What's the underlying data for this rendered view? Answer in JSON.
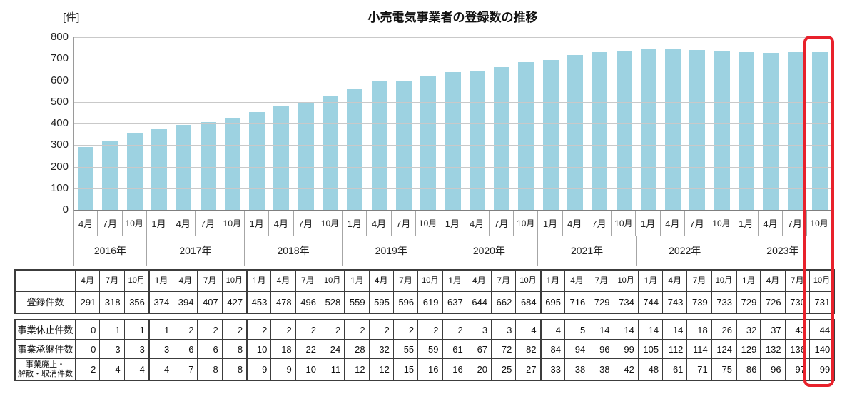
{
  "chart_data": {
    "type": "bar",
    "title": "小売電気事業者の登録数の推移",
    "ylabel": "[件]",
    "xlabel": "",
    "ylim": [
      0,
      800
    ],
    "ytick_interval": 100,
    "grid": true,
    "legend_position": "none",
    "bar_color": "#9dd2e1",
    "highlight_color": "#e8212b",
    "highlighted_category": "2023年 10月",
    "years": [
      {
        "label": "2016年",
        "months": [
          "4月",
          "7月",
          "10月"
        ]
      },
      {
        "label": "2017年",
        "months": [
          "1月",
          "4月",
          "7月",
          "10月"
        ]
      },
      {
        "label": "2018年",
        "months": [
          "1月",
          "4月",
          "7月",
          "10月"
        ]
      },
      {
        "label": "2019年",
        "months": [
          "1月",
          "4月",
          "7月",
          "10月"
        ]
      },
      {
        "label": "2020年",
        "months": [
          "1月",
          "4月",
          "7月",
          "10月"
        ]
      },
      {
        "label": "2021年",
        "months": [
          "1月",
          "4月",
          "7月",
          "10月"
        ]
      },
      {
        "label": "2022年",
        "months": [
          "1月",
          "4月",
          "7月",
          "10月"
        ]
      },
      {
        "label": "2023年",
        "months": [
          "1月",
          "4月",
          "7月",
          "10月"
        ]
      }
    ],
    "categories": [
      "4月",
      "7月",
      "10月",
      "1月",
      "4月",
      "7月",
      "10月",
      "1月",
      "4月",
      "7月",
      "10月",
      "1月",
      "4月",
      "7月",
      "10月",
      "1月",
      "4月",
      "7月",
      "10月",
      "1月",
      "4月",
      "7月",
      "10月",
      "1月",
      "4月",
      "7月",
      "10月",
      "1月",
      "4月",
      "7月",
      "10月"
    ],
    "values": [
      291,
      318,
      356,
      374,
      394,
      407,
      427,
      453,
      478,
      496,
      528,
      559,
      595,
      596,
      619,
      637,
      644,
      662,
      684,
      695,
      716,
      729,
      734,
      744,
      743,
      739,
      733,
      729,
      726,
      730,
      731
    ]
  },
  "table": {
    "corner_label": "",
    "col_months": [
      "4月",
      "7月",
      "10月",
      "1月",
      "4月",
      "7月",
      "10月",
      "1月",
      "4月",
      "7月",
      "10月",
      "1月",
      "4月",
      "7月",
      "10月",
      "1月",
      "4月",
      "7月",
      "10月",
      "1月",
      "4月",
      "7月",
      "10月",
      "1月",
      "4月",
      "7月",
      "10月",
      "1月",
      "4月",
      "7月",
      "10月"
    ],
    "year_group_sizes": [
      3,
      4,
      4,
      4,
      4,
      4,
      4,
      4
    ],
    "upper_rows": [
      {
        "label": "登録件数",
        "values": [
          291,
          318,
          356,
          374,
          394,
          407,
          427,
          453,
          478,
          496,
          528,
          559,
          595,
          596,
          619,
          637,
          644,
          662,
          684,
          695,
          716,
          729,
          734,
          744,
          743,
          739,
          733,
          729,
          726,
          730,
          731
        ]
      }
    ],
    "lower_rows": [
      {
        "label": "事業休止件数",
        "values": [
          0,
          1,
          1,
          1,
          2,
          2,
          2,
          2,
          2,
          2,
          2,
          2,
          2,
          2,
          2,
          2,
          3,
          3,
          4,
          4,
          5,
          14,
          14,
          14,
          14,
          18,
          26,
          32,
          37,
          43,
          44
        ]
      },
      {
        "label": "事業承継件数",
        "values": [
          0,
          3,
          3,
          3,
          6,
          6,
          8,
          10,
          18,
          22,
          24,
          28,
          32,
          55,
          59,
          61,
          67,
          72,
          82,
          84,
          94,
          96,
          99,
          105,
          112,
          114,
          124,
          129,
          132,
          136,
          140
        ]
      },
      {
        "label": "事業廃止・\n解散・取消件数",
        "values": [
          2,
          4,
          4,
          4,
          7,
          8,
          8,
          9,
          9,
          10,
          11,
          12,
          12,
          15,
          16,
          16,
          20,
          25,
          27,
          33,
          38,
          38,
          42,
          48,
          61,
          71,
          75,
          86,
          96,
          97,
          99
        ]
      }
    ]
  }
}
